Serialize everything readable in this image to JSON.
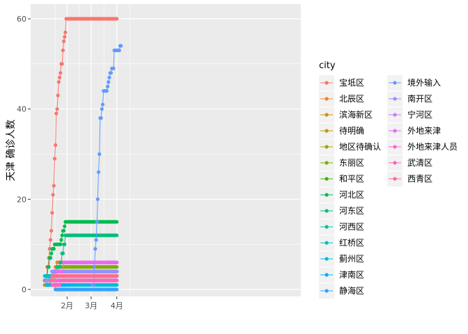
{
  "chart_data": {
    "type": "line",
    "ylabel": "天津 确诊人数",
    "xlabel": "",
    "ylim": [
      0,
      62
    ],
    "y_ticks": [
      0,
      20,
      40,
      60
    ],
    "x_ticks": [
      "2月",
      "3月",
      "4月"
    ],
    "legend": {
      "title": "city",
      "placement": "right",
      "columns": 2
    },
    "grid": true,
    "series": [
      {
        "name": "宝坻区",
        "color": "#F8766D",
        "points": [
          [
            1,
            1
          ],
          [
            3,
            2
          ],
          [
            4,
            5
          ],
          [
            6,
            7
          ],
          [
            7,
            9
          ],
          [
            8,
            11
          ],
          [
            9,
            13
          ],
          [
            10,
            17
          ],
          [
            11,
            21
          ],
          [
            12,
            23
          ],
          [
            13,
            29
          ],
          [
            14,
            32
          ],
          [
            15,
            39
          ],
          [
            16,
            40
          ],
          [
            17,
            43
          ],
          [
            18,
            46
          ],
          [
            19,
            47
          ],
          [
            20,
            48
          ],
          [
            21,
            50
          ],
          [
            22,
            50
          ],
          [
            23,
            53
          ],
          [
            24,
            55
          ],
          [
            25,
            56
          ],
          [
            26,
            57
          ],
          [
            27,
            60
          ],
          [
            28,
            60
          ],
          [
            30,
            60
          ],
          [
            40,
            60
          ],
          [
            50,
            60
          ],
          [
            60,
            60
          ],
          [
            70,
            60
          ],
          [
            80,
            60
          ],
          [
            88,
            60
          ]
        ]
      },
      {
        "name": "北辰区",
        "color": "#EA8331",
        "points": [
          [
            3,
            1
          ],
          [
            5,
            2
          ],
          [
            8,
            3
          ],
          [
            10,
            4
          ],
          [
            14,
            5
          ],
          [
            16,
            6
          ],
          [
            20,
            6
          ],
          [
            40,
            6
          ],
          [
            60,
            6
          ],
          [
            88,
            6
          ]
        ]
      },
      {
        "name": "滨海新区",
        "color": "#D89000",
        "points": [
          [
            1,
            1
          ],
          [
            5,
            1
          ],
          [
            8,
            2
          ],
          [
            14,
            3
          ],
          [
            20,
            3
          ],
          [
            40,
            3
          ],
          [
            60,
            3
          ],
          [
            88,
            3
          ]
        ]
      },
      {
        "name": "待明确",
        "color": "#C09B00",
        "points": [
          [
            12,
            1
          ],
          [
            14,
            0
          ],
          [
            24,
            0
          ]
        ]
      },
      {
        "name": "地区待确认",
        "color": "#A3A500",
        "points": [
          [
            10,
            2
          ],
          [
            12,
            4
          ],
          [
            40,
            4
          ],
          [
            88,
            4
          ]
        ]
      },
      {
        "name": "东丽区",
        "color": "#7CAE00",
        "points": [
          [
            5,
            3
          ],
          [
            14,
            4
          ],
          [
            18,
            5
          ],
          [
            20,
            5
          ],
          [
            50,
            5
          ],
          [
            88,
            5
          ]
        ]
      },
      {
        "name": "和平区",
        "color": "#39B600",
        "points": [
          [
            4,
            1
          ],
          [
            8,
            2
          ],
          [
            12,
            3
          ],
          [
            20,
            3
          ],
          [
            88,
            3
          ]
        ]
      },
      {
        "name": "河北区",
        "color": "#00BB4E",
        "points": [
          [
            1,
            2
          ],
          [
            3,
            3
          ],
          [
            5,
            5
          ],
          [
            7,
            7
          ],
          [
            9,
            8
          ],
          [
            10,
            9
          ],
          [
            12,
            9
          ],
          [
            13,
            10
          ],
          [
            20,
            10
          ],
          [
            21,
            11
          ],
          [
            22,
            12
          ],
          [
            23,
            13
          ],
          [
            24,
            13
          ],
          [
            25,
            14
          ],
          [
            26,
            15
          ],
          [
            30,
            15
          ],
          [
            60,
            15
          ],
          [
            88,
            15
          ]
        ]
      },
      {
        "name": "河东区",
        "color": "#00BF7D",
        "points": [
          [
            2,
            2
          ],
          [
            6,
            3
          ],
          [
            10,
            4
          ],
          [
            16,
            5
          ],
          [
            20,
            6
          ],
          [
            22,
            8
          ],
          [
            24,
            10
          ],
          [
            26,
            12
          ],
          [
            40,
            12
          ],
          [
            88,
            12
          ]
        ]
      },
      {
        "name": "河西区",
        "color": "#00C1A3",
        "points": [
          [
            2,
            2
          ],
          [
            8,
            3
          ],
          [
            14,
            3
          ],
          [
            40,
            3
          ],
          [
            88,
            3
          ]
        ]
      },
      {
        "name": "红桥区",
        "color": "#00BFC4",
        "points": [
          [
            1,
            3
          ],
          [
            6,
            3
          ],
          [
            12,
            4
          ],
          [
            20,
            4
          ],
          [
            88,
            4
          ]
        ]
      },
      {
        "name": "蓟州区",
        "color": "#00BAE0",
        "points": [
          [
            3,
            1
          ],
          [
            6,
            1
          ],
          [
            10,
            1
          ],
          [
            40,
            1
          ],
          [
            88,
            1
          ]
        ]
      },
      {
        "name": "津南区",
        "color": "#00B0F6",
        "points": [
          [
            4,
            2
          ],
          [
            8,
            1
          ],
          [
            14,
            1
          ],
          [
            26,
            1
          ],
          [
            30,
            1
          ]
        ]
      },
      {
        "name": "静海区",
        "color": "#35A2FF",
        "points": [
          [
            14,
            0
          ],
          [
            20,
            0
          ],
          [
            40,
            0
          ],
          [
            60,
            0
          ],
          [
            88,
            0
          ]
        ]
      },
      {
        "name": "境外输入",
        "color": "#619CFF",
        "points": [
          [
            58,
            1
          ],
          [
            59,
            1
          ],
          [
            60,
            1
          ],
          [
            61,
            5
          ],
          [
            62,
            9
          ],
          [
            63,
            11
          ],
          [
            64,
            15
          ],
          [
            65,
            20
          ],
          [
            66,
            26
          ],
          [
            67,
            30
          ],
          [
            68,
            38
          ],
          [
            69,
            38
          ],
          [
            70,
            40
          ],
          [
            71,
            41
          ],
          [
            72,
            44
          ],
          [
            73,
            44
          ],
          [
            74,
            44
          ],
          [
            75,
            44
          ],
          [
            76,
            44
          ],
          [
            77,
            45
          ],
          [
            78,
            46
          ],
          [
            79,
            47
          ],
          [
            80,
            48
          ],
          [
            81,
            48
          ],
          [
            82,
            49
          ],
          [
            83,
            49
          ],
          [
            84,
            49
          ],
          [
            85,
            53
          ],
          [
            86,
            53
          ],
          [
            87,
            53
          ],
          [
            88,
            53
          ],
          [
            89,
            53
          ],
          [
            90,
            53
          ],
          [
            91,
            53
          ],
          [
            92,
            54
          ],
          [
            93,
            54
          ]
        ]
      },
      {
        "name": "南开区",
        "color": "#9590FF",
        "points": [
          [
            2,
            2
          ],
          [
            6,
            2
          ],
          [
            10,
            4
          ],
          [
            20,
            4
          ],
          [
            50,
            4
          ],
          [
            88,
            4
          ]
        ]
      },
      {
        "name": "宁河区",
        "color": "#C77CFF",
        "points": [
          [
            12,
            1
          ],
          [
            14,
            2
          ],
          [
            40,
            2
          ],
          [
            88,
            2
          ]
        ]
      },
      {
        "name": "外地来津",
        "color": "#E76BF3",
        "points": [
          [
            8,
            2
          ],
          [
            10,
            3
          ],
          [
            16,
            4
          ],
          [
            24,
            6
          ],
          [
            60,
            6
          ],
          [
            88,
            6
          ]
        ]
      },
      {
        "name": "外地来津人员",
        "color": "#FA62DB",
        "points": [
          [
            14,
            1
          ],
          [
            16,
            2
          ],
          [
            20,
            2
          ],
          [
            60,
            2
          ],
          [
            88,
            2
          ]
        ]
      },
      {
        "name": "武清区",
        "color": "#FF62BC",
        "points": [
          [
            10,
            1
          ],
          [
            14,
            1
          ],
          [
            20,
            2
          ],
          [
            40,
            2
          ],
          [
            88,
            2
          ]
        ]
      },
      {
        "name": "西青区",
        "color": "#FF6C91",
        "points": [
          [
            8,
            2
          ],
          [
            12,
            3
          ],
          [
            40,
            3
          ],
          [
            88,
            3
          ]
        ]
      }
    ]
  }
}
